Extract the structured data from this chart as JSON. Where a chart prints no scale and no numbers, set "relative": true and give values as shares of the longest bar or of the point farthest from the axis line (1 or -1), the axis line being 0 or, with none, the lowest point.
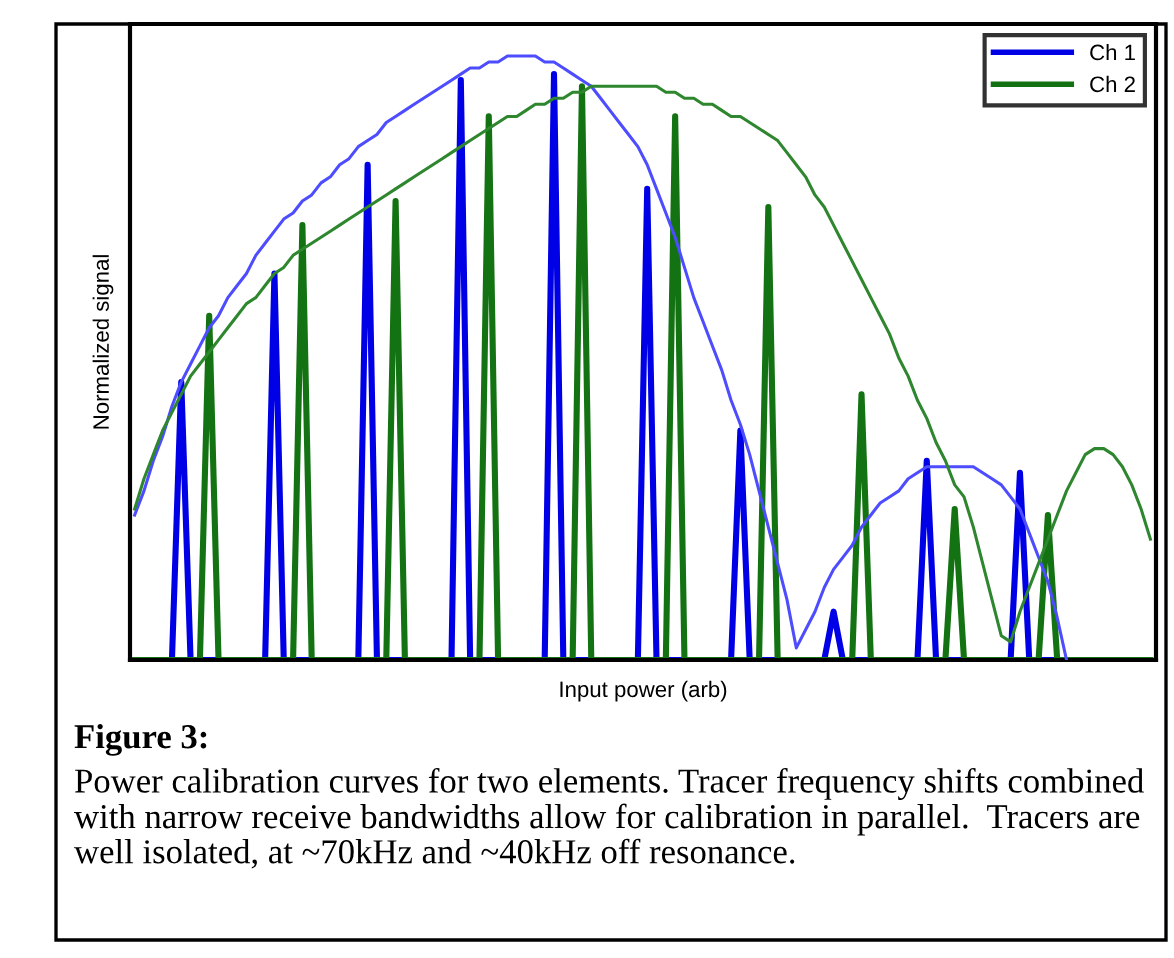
{
  "chart_data": {
    "type": "line",
    "relative": true,
    "xlabel": "Input power (arb)",
    "ylabel": "Normalized signal",
    "legend": "top right",
    "grid": false,
    "annotations": [
      "Figure 3:",
      "Power calibration curves for two elements. Tracer frequency shifts combined with narrow receive bandwidths allow for calibration in parallel.  Tracers are well isolated, at ~70kHz and ~40kHz off resonance."
    ],
    "categories": [
      null,
      null,
      null,
      null,
      null,
      null,
      null,
      null,
      null,
      null,
      null,
      null,
      null,
      null,
      null,
      null,
      null,
      null,
      null,
      null,
      null,
      null,
      null,
      null,
      null,
      null,
      null,
      null,
      null,
      null,
      null,
      null,
      null,
      null,
      null,
      null,
      null,
      null,
      null,
      null,
      null,
      null,
      null,
      null,
      null,
      null,
      null,
      null,
      null,
      null,
      null,
      null,
      null,
      null,
      null,
      null,
      null,
      null,
      null,
      null,
      null,
      null,
      null,
      null,
      null,
      null,
      null,
      null,
      null,
      null,
      null,
      null,
      null,
      null,
      null,
      null,
      null,
      null,
      null,
      null,
      null,
      null,
      null,
      null,
      null,
      null,
      null,
      null,
      null,
      null,
      null,
      null,
      null,
      null,
      null,
      null,
      null,
      null,
      null,
      null,
      null,
      null,
      null,
      null,
      null,
      null,
      null,
      null,
      null,
      null
    ],
    "series": [
      {
        "name": "Ch 1",
        "color": "#0000e6",
        "values": [
          null,
          null,
          0,
          0,
          0,
          0.46,
          0,
          0,
          0,
          0,
          0,
          0,
          0,
          0,
          0,
          0.64,
          0,
          0,
          0,
          0,
          0,
          0,
          0,
          0,
          0,
          0.82,
          0,
          0,
          0,
          0,
          0,
          0,
          0,
          0,
          0,
          0.96,
          0,
          0,
          0,
          0,
          0,
          0,
          0,
          0,
          0,
          0.97,
          0,
          0,
          0,
          0,
          0,
          0,
          0,
          0,
          0,
          0.78,
          0,
          0,
          0,
          0,
          0,
          0,
          0,
          0,
          0,
          0.38,
          0,
          0,
          0,
          0,
          0,
          0,
          0,
          0,
          0,
          0.08,
          0,
          0,
          0,
          0,
          0,
          0,
          0,
          0,
          0,
          0.33,
          0,
          0,
          0,
          0,
          0,
          0,
          0,
          0,
          0,
          0.31,
          0,
          0,
          0,
          0,
          0,
          0,
          0,
          null,
          null,
          null,
          null,
          null,
          null,
          null
        ]
      },
      {
        "name": "Ch 2",
        "color": "#137313",
        "values": [
          0,
          0,
          0,
          0,
          0,
          0,
          0,
          0,
          0.57,
          0,
          0,
          0,
          0,
          0,
          0,
          0,
          0,
          0,
          0.72,
          0,
          0,
          0,
          0,
          0,
          0,
          0,
          0,
          0,
          0.76,
          0,
          0,
          0,
          0,
          0,
          0,
          0,
          0,
          0,
          0.9,
          0,
          0,
          0,
          0,
          0,
          0,
          0,
          0,
          0,
          0.95,
          0,
          0,
          0,
          0,
          0,
          0,
          0,
          0,
          0,
          0.9,
          0,
          0,
          0,
          0,
          0,
          0,
          0,
          0,
          0,
          0.75,
          0,
          0,
          0,
          0,
          0,
          0,
          0,
          0,
          0,
          0.44,
          0,
          0,
          0,
          0,
          0,
          0,
          0,
          0,
          0,
          0.25,
          0,
          0,
          0,
          0,
          0,
          0,
          0,
          0,
          0,
          0.24,
          0,
          0,
          0,
          0,
          0,
          0,
          0,
          0,
          0,
          0,
          0
        ]
      },
      {
        "color": "#4d4dff",
        "values": [
          0.24,
          0.28,
          0.33,
          0.37,
          0.42,
          0.46,
          0.49,
          0.52,
          0.55,
          0.57,
          0.6,
          0.62,
          0.64,
          0.67,
          0.69,
          0.71,
          0.73,
          0.74,
          0.76,
          0.77,
          0.79,
          0.8,
          0.82,
          0.83,
          0.85,
          0.86,
          0.87,
          0.89,
          0.9,
          0.91,
          0.92,
          0.93,
          0.94,
          0.95,
          0.96,
          0.97,
          0.98,
          0.98,
          0.99,
          0.99,
          1.0,
          1.0,
          1.0,
          1.0,
          0.99,
          0.99,
          0.98,
          0.97,
          0.96,
          0.95,
          0.93,
          0.91,
          0.89,
          0.87,
          0.85,
          0.82,
          0.78,
          0.74,
          0.7,
          0.65,
          0.6,
          0.56,
          0.52,
          0.48,
          0.43,
          0.39,
          0.34,
          0.28,
          0.22,
          0.16,
          0.1,
          0.02,
          0.05,
          0.08,
          0.12,
          0.15,
          0.17,
          0.19,
          0.22,
          0.24,
          0.26,
          0.27,
          0.28,
          0.3,
          0.31,
          0.32,
          0.32,
          0.32,
          0.32,
          0.32,
          0.32,
          0.31,
          0.3,
          0.29,
          0.27,
          0.25,
          0.21,
          0.17,
          0.13,
          0.07,
          0.0,
          null,
          null,
          null,
          null,
          null,
          null,
          null,
          null,
          null
        ]
      },
      {
        "color": "#2e862e",
        "values": [
          0.25,
          0.3,
          0.34,
          0.38,
          0.41,
          0.44,
          0.47,
          0.49,
          0.51,
          0.53,
          0.55,
          0.57,
          0.59,
          0.6,
          0.62,
          0.64,
          0.65,
          0.67,
          0.68,
          0.69,
          0.7,
          0.71,
          0.72,
          0.73,
          0.74,
          0.75,
          0.76,
          0.77,
          0.78,
          0.79,
          0.8,
          0.81,
          0.82,
          0.83,
          0.84,
          0.85,
          0.86,
          0.87,
          0.88,
          0.89,
          0.9,
          0.9,
          0.91,
          0.92,
          0.92,
          0.93,
          0.93,
          0.94,
          0.94,
          0.95,
          0.95,
          0.95,
          0.95,
          0.95,
          0.95,
          0.95,
          0.95,
          0.94,
          0.94,
          0.93,
          0.93,
          0.92,
          0.92,
          0.91,
          0.9,
          0.9,
          0.89,
          0.88,
          0.87,
          0.86,
          0.84,
          0.82,
          0.8,
          0.77,
          0.75,
          0.72,
          0.69,
          0.66,
          0.63,
          0.6,
          0.57,
          0.54,
          0.5,
          0.47,
          0.43,
          0.4,
          0.36,
          0.33,
          0.29,
          0.27,
          0.22,
          0.16,
          0.1,
          0.04,
          0.03,
          0.08,
          0.12,
          0.16,
          0.2,
          0.24,
          0.28,
          0.31,
          0.34,
          0.35,
          0.35,
          0.34,
          0.32,
          0.29,
          0.25,
          0.2
        ]
      }
    ]
  }
}
